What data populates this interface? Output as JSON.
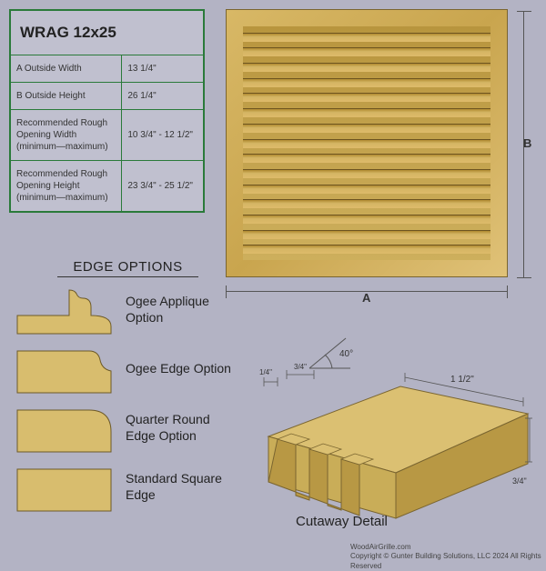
{
  "spec_table": {
    "title": "WRAG 12x25",
    "border_color": "#2a7a3a",
    "rows": [
      {
        "label": "A  Outside Width",
        "value": "13 1/4\""
      },
      {
        "label": "B  Outside Height",
        "value": "26 1/4\""
      },
      {
        "label": "Recommended Rough Opening Width (minimum—maximum)",
        "value": "10 3/4\" - 12 1/2\""
      },
      {
        "label": "Recommended Rough Opening Height (minimum—maximum)",
        "value": "23 3/4\" - 25 1/2\""
      }
    ],
    "font_size_title": 17,
    "font_size_body": 10
  },
  "grille": {
    "slat_count": 15,
    "wood_colors": [
      "#d8b866",
      "#c9a54e",
      "#e0c278"
    ],
    "slat_gradient": [
      "#b08a30",
      "#d4b564",
      "#deba6a"
    ],
    "dim_a_label": "A",
    "dim_b_label": "B"
  },
  "edge_options": {
    "title": "EDGE OPTIONS",
    "fill": "#d8bd6e",
    "stroke": "#6d5a28",
    "items": [
      {
        "key": "ogee-applique",
        "label": "Ogee Applique Option"
      },
      {
        "key": "ogee-edge",
        "label": "Ogee Edge Option"
      },
      {
        "key": "quarter-round",
        "label": "Quarter Round Edge Option"
      },
      {
        "key": "square",
        "label": "Standard Square Edge"
      }
    ]
  },
  "cutaway": {
    "label": "Cutaway Detail",
    "angle_label": "40°",
    "dims": {
      "front_slot": "1/4\"",
      "top": "3/4\"",
      "depth": "1 1/2\"",
      "side": "3/4\""
    },
    "wood_top": "#dbc072",
    "wood_side": "#b89844",
    "wood_front": "#c9ad58",
    "line_color": "#555"
  },
  "footer": {
    "site": "WoodAirGrille.com",
    "copyright": "Copyright ©  Gunter Building Solutions, LLC 2024 All Rights Reserved"
  },
  "background_color": "#b3b3c4"
}
